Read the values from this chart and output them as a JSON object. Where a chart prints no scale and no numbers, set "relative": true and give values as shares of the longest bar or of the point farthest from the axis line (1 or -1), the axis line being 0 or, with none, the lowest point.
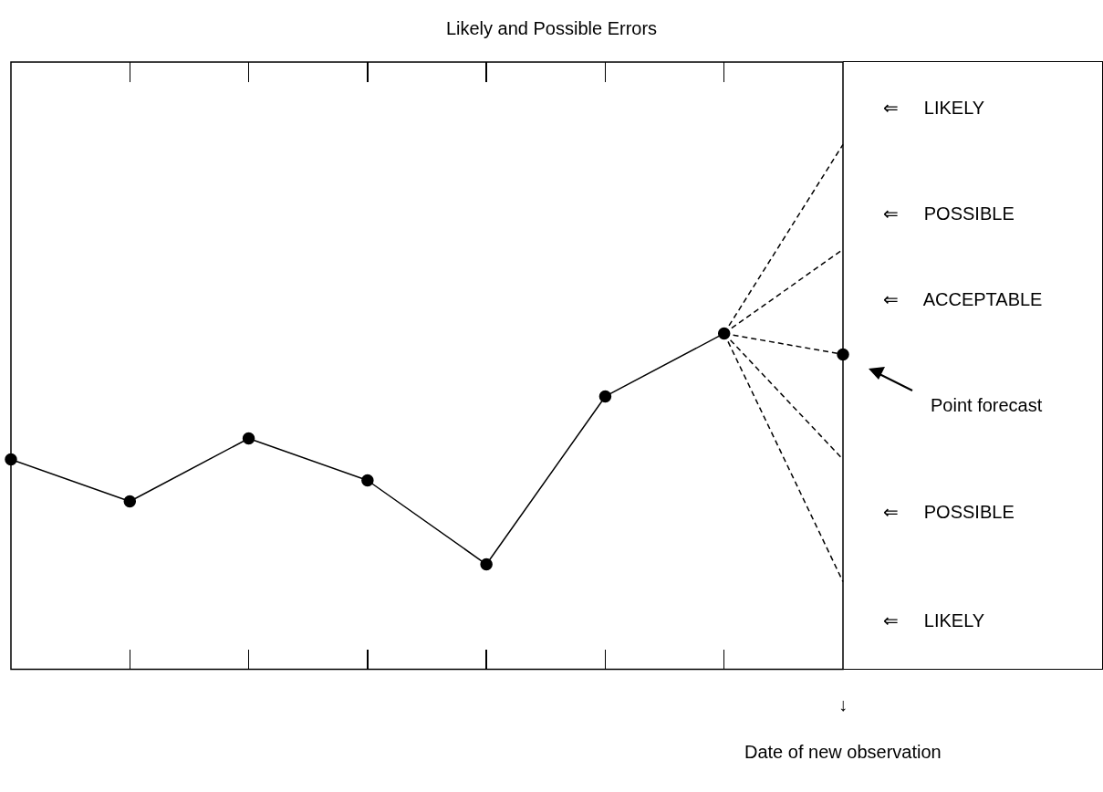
{
  "chart_data": {
    "type": "line",
    "title": "Likely and Possible Errors",
    "relative": true,
    "categories": [
      null,
      null,
      null,
      null,
      null,
      null,
      null,
      null
    ],
    "series": [
      {
        "color": "#000000",
        "marker": "circle",
        "line_style": "solid",
        "values": [
          0.4,
          0.32,
          0.44,
          0.36,
          0.2,
          0.52,
          0.64,
          0.6
        ]
      },
      {
        "color": "#000000",
        "line_style": "dashed",
        "values": [
          null,
          null,
          null,
          null,
          null,
          null,
          0.64,
          1.0
        ]
      },
      {
        "color": "#000000",
        "line_style": "dashed",
        "values": [
          null,
          null,
          null,
          null,
          null,
          null,
          0.64,
          0.8
        ]
      },
      {
        "color": "#000000",
        "line_style": "dashed",
        "values": [
          null,
          null,
          null,
          null,
          null,
          null,
          0.64,
          0.4
        ]
      },
      {
        "color": "#000000",
        "line_style": "dashed",
        "values": [
          null,
          null,
          null,
          null,
          null,
          null,
          0.64,
          0.167
        ]
      }
    ],
    "annotations": [
      "⇐     LIKELY",
      "⇐     POSSIBLE",
      "⇐     ACCEPTABLE",
      "Point forecast",
      "⇐     POSSIBLE",
      "⇐     LIKELY",
      "↓",
      "Date of new observation"
    ]
  }
}
